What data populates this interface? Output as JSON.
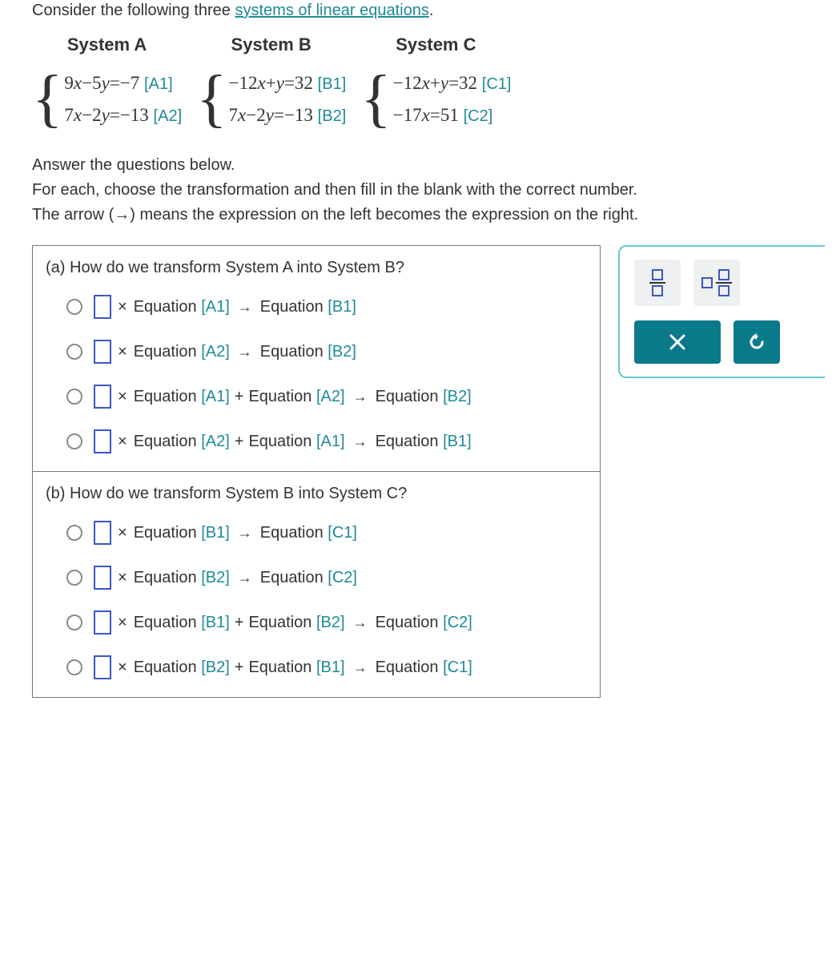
{
  "intro": {
    "prefix": "Consider the following three ",
    "link_text": "systems of linear equations",
    "suffix": "."
  },
  "systems": [
    {
      "title": "System A",
      "rows": [
        {
          "lhs": "9x−5y=−7",
          "tag": "[A1]"
        },
        {
          "lhs": "7x−2y=−13",
          "tag": "[A2]"
        }
      ]
    },
    {
      "title": "System B",
      "rows": [
        {
          "lhs": "−12x+y=32",
          "tag": "[B1]"
        },
        {
          "lhs": "7x−2y=−13",
          "tag": "[B2]"
        }
      ]
    },
    {
      "title": "System C",
      "rows": [
        {
          "lhs": "−12x+y=32",
          "tag": "[C1]"
        },
        {
          "lhs": "−17x=51",
          "tag": "[C2]"
        }
      ]
    }
  ],
  "instructions": {
    "line1": "Answer the questions below.",
    "line2": "For each, choose the transformation and then fill in the blank with the correct number.",
    "line3_pre": "The arrow ",
    "line3_mid": "(→)",
    "line3_post": " means the expression on the left becomes the expression on the right."
  },
  "parts": [
    {
      "label": "(a)",
      "question": "How do we transform System A into System B?",
      "options": [
        {
          "left": "[A1]",
          "plus": null,
          "right": "[B1]"
        },
        {
          "left": "[A2]",
          "plus": null,
          "right": "[B2]"
        },
        {
          "left": "[A1]",
          "plus": "[A2]",
          "right": "[B2]"
        },
        {
          "left": "[A2]",
          "plus": "[A1]",
          "right": "[B1]"
        }
      ]
    },
    {
      "label": "(b)",
      "question": "How do we transform System B into System C?",
      "options": [
        {
          "left": "[B1]",
          "plus": null,
          "right": "[C1]"
        },
        {
          "left": "[B2]",
          "plus": null,
          "right": "[C2]"
        },
        {
          "left": "[B1]",
          "plus": "[B2]",
          "right": "[C2]"
        },
        {
          "left": "[B2]",
          "plus": "[B1]",
          "right": "[C1]"
        }
      ]
    }
  ],
  "words": {
    "equation": "Equation",
    "times": "×",
    "plus": "+",
    "arrow": "→"
  },
  "palette": {
    "tiles": [
      "fraction",
      "mixed-fraction"
    ],
    "buttons": [
      "close",
      "reset"
    ]
  },
  "colors": {
    "teal_link": "#1f8a99",
    "input_border": "#3a57c4",
    "panel_border": "#69c6d3",
    "button_bg": "#0a7a8a",
    "tile_bg": "#eef0f1",
    "text": "#333333"
  }
}
